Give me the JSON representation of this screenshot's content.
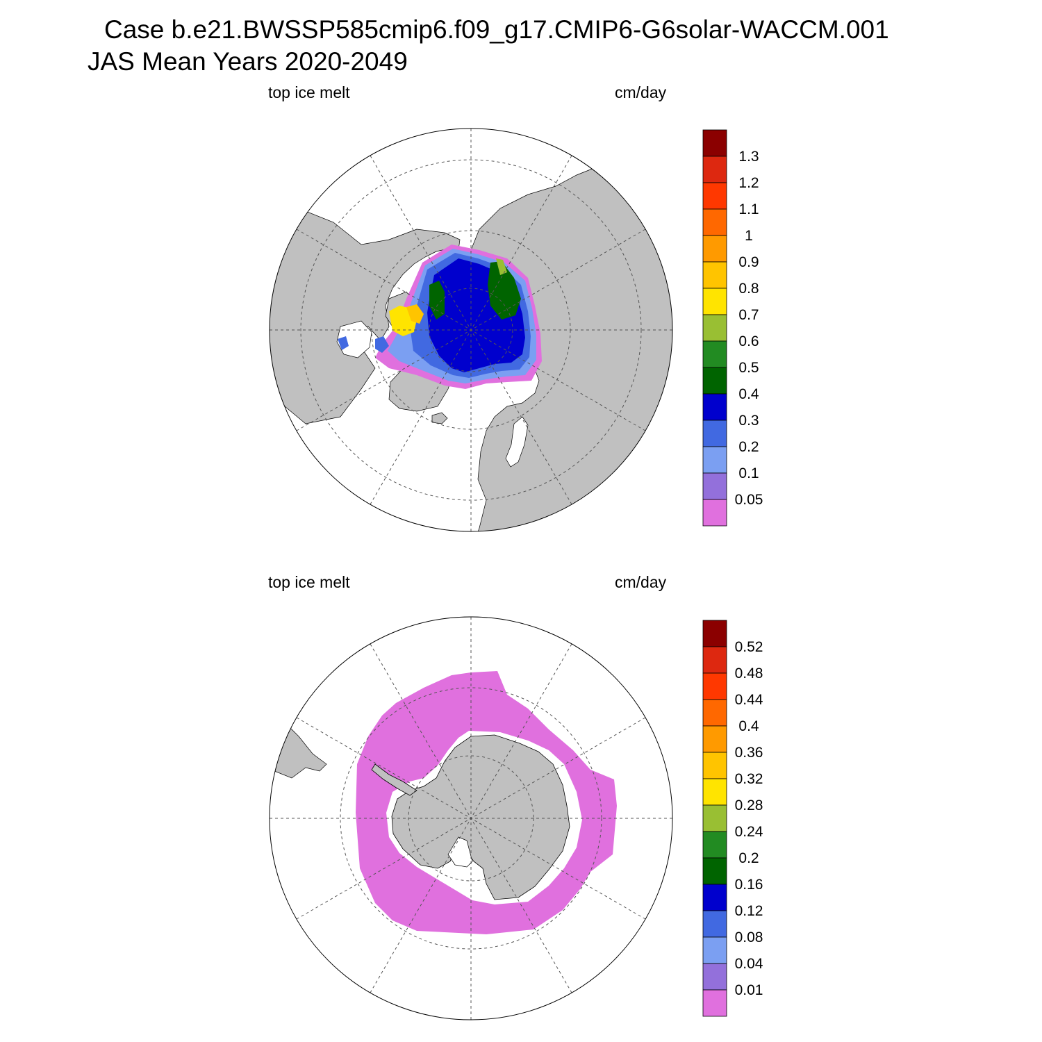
{
  "title": {
    "line1": "Case b.e21.BWSSP585cmip6.f09_g17.CMIP6-G6solar-WACCM.001",
    "line2": "JAS Mean   Years 2020-2049"
  },
  "panels": [
    {
      "id": "north",
      "hemisphere": "Arctic (north polar stereographic)",
      "variable_label": "top ice melt",
      "units_label": "cm/day",
      "colorbar": {
        "levels": [
          "1.3",
          "1.2",
          "1.1",
          "1",
          "0.9",
          "0.8",
          "0.7",
          "0.6",
          "0.5",
          "0.4",
          "0.3",
          "0.2",
          "0.1",
          "0.05"
        ],
        "colors": [
          "#8b0000",
          "#dd2810",
          "#ff3800",
          "#ff6800",
          "#ff9a00",
          "#ffc400",
          "#ffe400",
          "#99bf33",
          "#228b22",
          "#006400",
          "#0000cd",
          "#4169e1",
          "#7b9ff2",
          "#9370db",
          "#e070de"
        ]
      }
    },
    {
      "id": "south",
      "hemisphere": "Antarctic (south polar stereographic)",
      "variable_label": "top ice melt",
      "units_label": "cm/day",
      "colorbar": {
        "levels": [
          "0.52",
          "0.48",
          "0.44",
          "0.4",
          "0.36",
          "0.32",
          "0.28",
          "0.24",
          "0.2",
          "0.16",
          "0.12",
          "0.08",
          "0.04",
          "0.01"
        ],
        "colors": [
          "#8b0000",
          "#dd2810",
          "#ff3800",
          "#ff6800",
          "#ff9a00",
          "#ffc400",
          "#ffe400",
          "#99bf33",
          "#228b22",
          "#006400",
          "#0000cd",
          "#4169e1",
          "#7b9ff2",
          "#9370db",
          "#e070de"
        ]
      }
    }
  ],
  "colors": {
    "land": "#c0c0c0",
    "ocean": "#ffffff",
    "grid": "#555555"
  }
}
